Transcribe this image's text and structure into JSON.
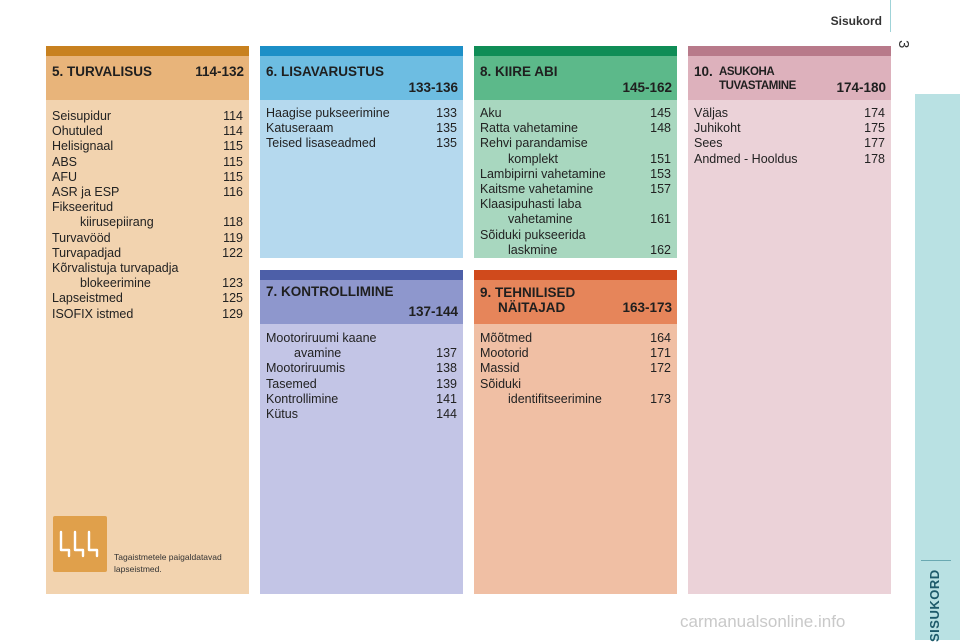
{
  "header": {
    "title": "Sisukord",
    "page_number": "3"
  },
  "side_tab": {
    "label": "SISUKORD"
  },
  "sections": {
    "s5": {
      "num_title": "5. TURVALISUS",
      "pages": "114-132",
      "items": [
        {
          "label": "Seisupidur",
          "page": "114"
        },
        {
          "label": "Ohutuled",
          "page": "114"
        },
        {
          "label": "Helisignaal",
          "page": "115"
        },
        {
          "label": "ABS",
          "page": "115"
        },
        {
          "label": "AFU",
          "page": "115"
        },
        {
          "label": "ASR ja ESP",
          "page": "116"
        },
        {
          "label": "Fikseeritud",
          "page": ""
        },
        {
          "label": "kiirusepiirang",
          "page": "118"
        },
        {
          "label": "Turvavööd",
          "page": "119"
        },
        {
          "label": "Turvapadjad",
          "page": "122"
        },
        {
          "label": "Kõrvalistuja turvapadja",
          "page": ""
        },
        {
          "label": "blokeerimine",
          "page": "123"
        },
        {
          "label": "Lapseistmed",
          "page": "125"
        },
        {
          "label": "ISOFIX istmed",
          "page": "129"
        }
      ],
      "note": "Tagaistmetele paigaldatavad lapseistmed."
    },
    "s6": {
      "num_title": "6. LISAVARUSTUS",
      "pages": "133-136",
      "items": [
        {
          "label": "Haagise pukseerimine",
          "page": "133"
        },
        {
          "label": "Katuseraam",
          "page": "135"
        },
        {
          "label": "Teised lisaseadmed",
          "page": "135"
        }
      ]
    },
    "s7": {
      "num_title": "7. KONTROLLIMINE",
      "pages": "137-144",
      "items": [
        {
          "label": "Mootoriruumi kaane",
          "page": ""
        },
        {
          "label": "avamine",
          "page": "137"
        },
        {
          "label": "Mootoriruumis",
          "page": "138"
        },
        {
          "label": "Tasemed",
          "page": "139"
        },
        {
          "label": "Kontrollimine",
          "page": "141"
        },
        {
          "label": "Kütus",
          "page": "144"
        }
      ]
    },
    "s8": {
      "num_title": "8. KIIRE ABI",
      "pages": "145-162",
      "items": [
        {
          "label": "Aku",
          "page": "145"
        },
        {
          "label": "Ratta vahetamine",
          "page": "148"
        },
        {
          "label": "Rehvi parandamise",
          "page": ""
        },
        {
          "label": "komplekt",
          "page": "151"
        },
        {
          "label": "Lambipirni vahetamine",
          "page": "153"
        },
        {
          "label": "Kaitsme vahetamine",
          "page": "157"
        },
        {
          "label": "Klaasipuhasti laba",
          "page": ""
        },
        {
          "label": "vahetamine",
          "page": "161"
        },
        {
          "label": "Sõiduki pukseerida",
          "page": ""
        },
        {
          "label": "laskmine",
          "page": "162"
        }
      ]
    },
    "s9": {
      "num_title": "9. TEHNILISED",
      "num_title2": "NÄITAJAD",
      "pages": "163-173",
      "items": [
        {
          "label": "Mõõtmed",
          "page": "164"
        },
        {
          "label": "Mootorid",
          "page": "171"
        },
        {
          "label": "Massid",
          "page": "172"
        },
        {
          "label": "Sõiduki",
          "page": ""
        },
        {
          "label": "identifitseerimine",
          "page": "173"
        }
      ]
    },
    "s10": {
      "num": "10.",
      "title1": "ASUKOHA",
      "title2": "TUVASTAMINE",
      "pages": "174-180",
      "items": [
        {
          "label": "Väljas",
          "page": "174"
        },
        {
          "label": "Juhikoht",
          "page": "175"
        },
        {
          "label": "Sees",
          "page": "177"
        },
        {
          "label": "Andmed - Hooldus",
          "page": "178"
        }
      ]
    }
  },
  "watermark": "carmanualsonline.info",
  "colors": {
    "s5_bar": "#c8811f",
    "s5_head": "#e8b47a",
    "s5_body": "#f2d3af",
    "s6_bar": "#1c8fc7",
    "s6_head": "#6dbde2",
    "s6_body": "#b5d9ee",
    "s7_bar": "#4d5fa8",
    "s7_head": "#8e97cd",
    "s7_body": "#c3c5e6",
    "s8_bar": "#0f8d56",
    "s8_head": "#5cb98a",
    "s8_body": "#a8d7bf",
    "s9_bar": "#d04a1c",
    "s9_head": "#e6855a",
    "s9_body": "#f0bfa4",
    "s10_bar": "#b87a8a",
    "s10_head": "#ddb1bc",
    "s10_body": "#ebd2d8"
  }
}
